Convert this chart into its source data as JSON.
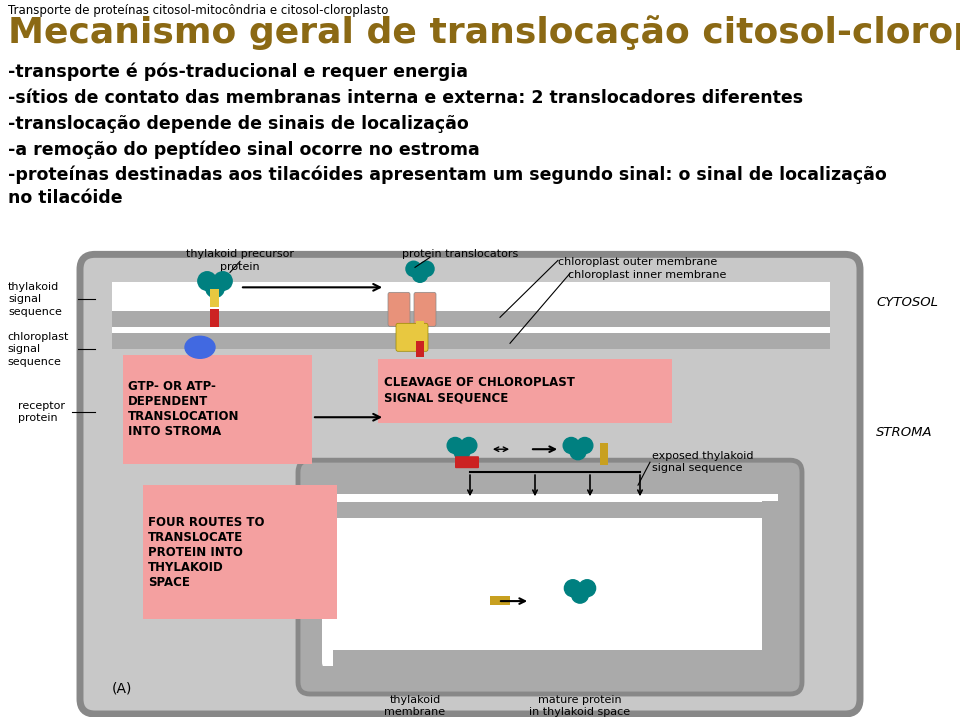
{
  "bg_color": "#ffffff",
  "header_text": "Transporte de proteínas citosol-mitocôndria e citosol-cloroplasto",
  "title": "Mecanismo geral de translocação citosol-cloroplasto",
  "title_color": "#8B6914",
  "bullet_lines": [
    "-transporte é pós-traducional e requer energia",
    "-sítios de contato das membranas interna e externa: 2 translocadores diferentes",
    "-translocação depende de sinais de localização",
    "-a remoção do peptídeo sinal ocorre no estroma",
    "-proteínas destinadas aos tilacóides apresentam um segundo sinal: o sinal de localização\nno tilacóide"
  ],
  "header_fontsize": 8.5,
  "title_fontsize": 26,
  "bullet_fontsize": 12.5,
  "diagram_labels": {
    "cytosol": "CYTOSOL",
    "stroma": "STROMA",
    "thylakoid_precursor": "thylakoid precursor\nprotein",
    "protein_translocators": "protein translocators",
    "chloroplast_outer": "chloroplast outer membrane",
    "chloroplast_inner": "chloroplast inner membrane",
    "thylakoid_signal": "thylakoid\nsignal\nsequence",
    "chloroplast_signal": "chloroplast\nsignal\nsequence",
    "receptor_protein": "receptor\nprotein",
    "cleavage": "CLEAVAGE OF CHLOROPLAST\nSIGNAL SEQUENCE",
    "gtp_atp": "GTP- OR ATP-\nDEPENDENT\nTRANSLOCATION\nINTO STROMA",
    "four_routes": "FOUR ROUTES TO\nTRANSLOCATE\nPROTEIN INTO\nTHYLAKOID\nSPACE",
    "exposed_thylakoid": "exposed thylakoid\nsignal sequence",
    "thylakoid_membrane": "thylakoid\nmembrane",
    "mature_protein": "mature protein\nin thylakoid space",
    "panel_A": "(A)"
  },
  "pink_box_color": "#F4A0A0",
  "teal_color": "#008080",
  "yellow_color": "#E8C840",
  "salmon_color": "#E8927A",
  "blue_color": "#4169E1",
  "red_color": "#CC2222",
  "dark_yellow": "#C8A020",
  "gray_mem": "#AAAAAA",
  "gray_fill": "#C8C8C8",
  "gray_border": "#888888"
}
